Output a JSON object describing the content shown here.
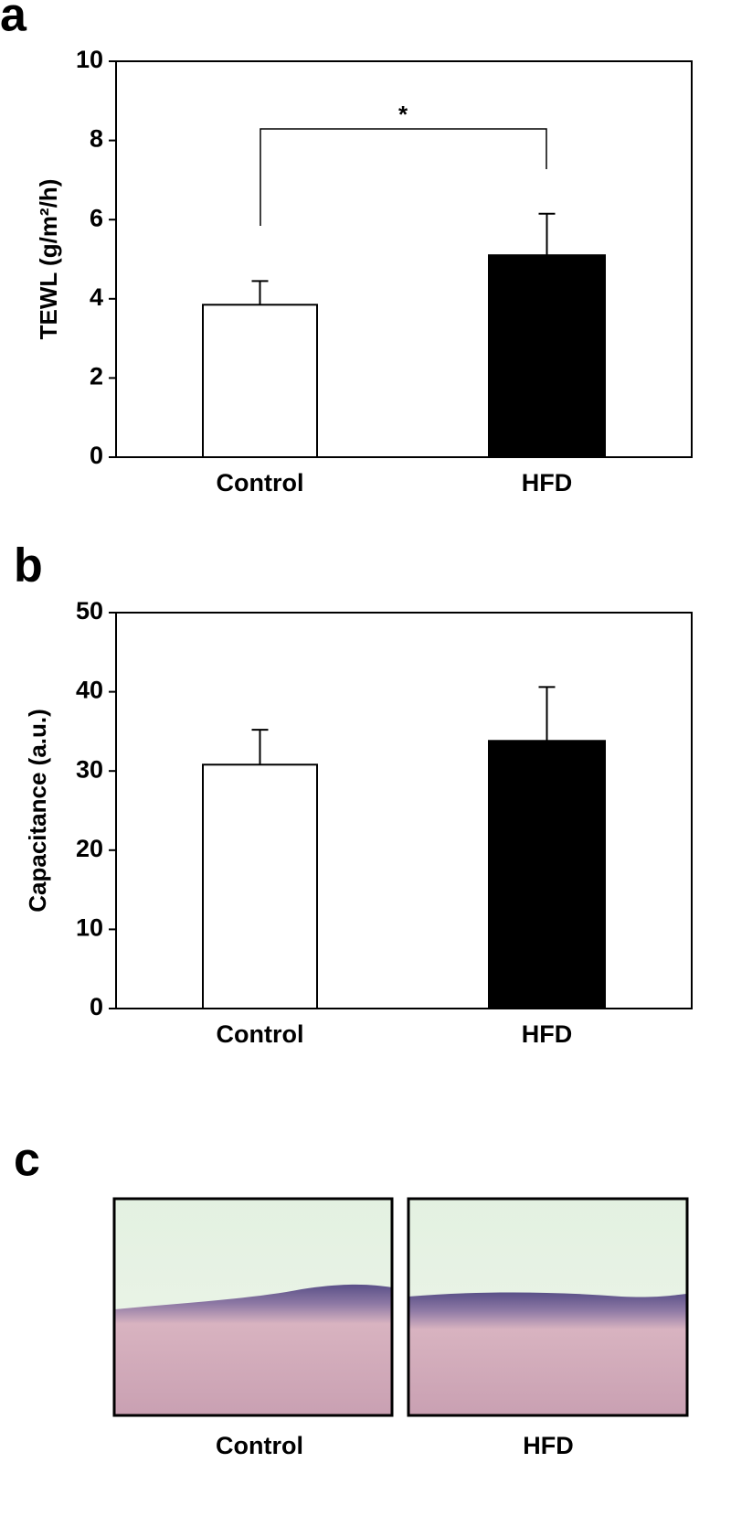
{
  "chart_data": [
    {
      "type": "bar",
      "panel": "a",
      "ylabel": "TEWL (g/m²/h)",
      "categories": [
        "Control",
        "HFD"
      ],
      "values": [
        3.85,
        5.1
      ],
      "errors": [
        0.6,
        1.05
      ],
      "colors": [
        "#ffffff",
        "#000000"
      ],
      "ylim": [
        0,
        10
      ],
      "yticks": [
        0,
        2,
        4,
        6,
        8,
        10
      ],
      "annotation": "*"
    },
    {
      "type": "bar",
      "panel": "b",
      "ylabel": "Capacitance (a.u.)",
      "categories": [
        "Control",
        "HFD"
      ],
      "values": [
        30.8,
        33.8
      ],
      "errors": [
        4.4,
        6.8
      ],
      "colors": [
        "#ffffff",
        "#000000"
      ],
      "ylim": [
        0,
        50
      ],
      "yticks": [
        0,
        10,
        20,
        30,
        40,
        50
      ]
    }
  ],
  "panel_c": {
    "label": "c",
    "captions": [
      "Control",
      "HFD"
    ]
  }
}
